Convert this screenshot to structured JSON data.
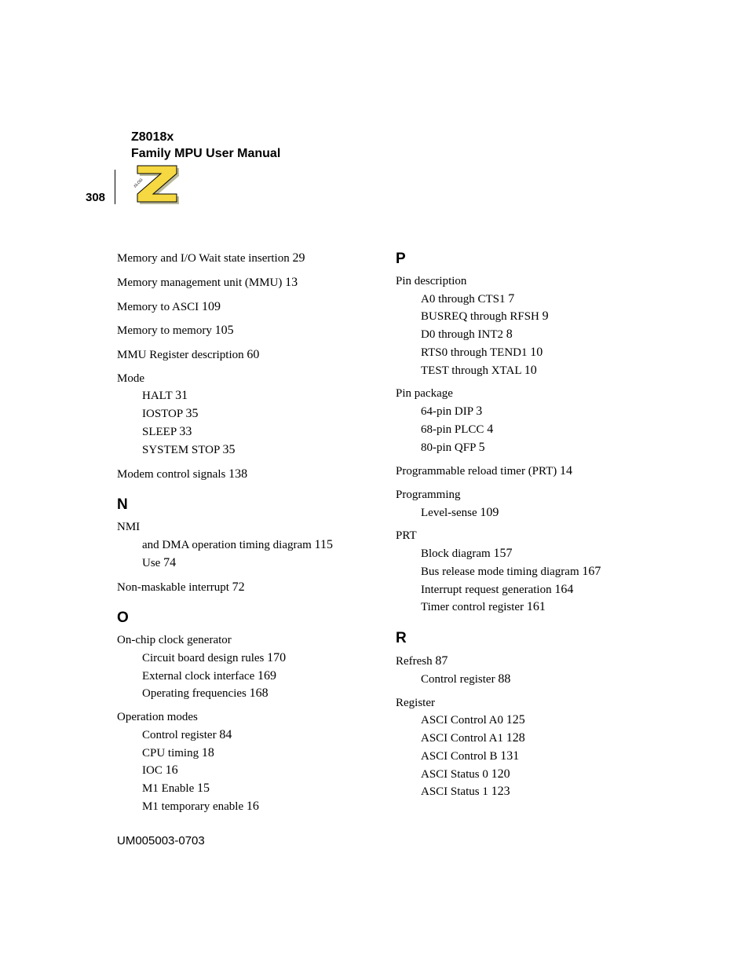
{
  "header": {
    "line1": "Z8018x",
    "line2": "Family MPU User Manual"
  },
  "page_number": "308",
  "footer_text": "UM005003-0703",
  "left_column": {
    "top_entries": [
      {
        "text": "Memory and I/O Wait state insertion",
        "page": "29"
      },
      {
        "text": "Memory management unit (MMU)",
        "page": "13"
      },
      {
        "text": "Memory to ASCI",
        "page": "109"
      },
      {
        "text": "Memory to memory",
        "page": "105"
      },
      {
        "text": "MMU Register description",
        "page": "60"
      }
    ],
    "mode_group": {
      "parent": "Mode",
      "children": [
        {
          "text": "HALT",
          "page": "31"
        },
        {
          "text": "IOSTOP",
          "page": "35"
        },
        {
          "text": "SLEEP",
          "page": "33"
        },
        {
          "text": "SYSTEM STOP",
          "page": "35"
        }
      ]
    },
    "modem_entry": {
      "text": "Modem control signals",
      "page": "138"
    },
    "sections": [
      {
        "heading": "N",
        "groups": [
          {
            "parent": "NMI",
            "children": [
              {
                "text": "and DMA operation timing diagram",
                "page": "115"
              },
              {
                "text": "Use",
                "page": "74"
              }
            ]
          },
          {
            "parent": null,
            "single": {
              "text": "Non-maskable interrupt",
              "page": "72"
            }
          }
        ]
      },
      {
        "heading": "O",
        "groups": [
          {
            "parent": "On-chip clock generator",
            "children": [
              {
                "text": "Circuit board design rules",
                "page": "170"
              },
              {
                "text": "External clock interface",
                "page": "169"
              },
              {
                "text": "Operating frequencies",
                "page": "168"
              }
            ]
          },
          {
            "parent": "Operation modes",
            "children": [
              {
                "text": "Control register",
                "page": "84"
              },
              {
                "text": "CPU timing",
                "page": "18"
              },
              {
                "text": "IOC",
                "page": "16"
              },
              {
                "text": "M1 Enable",
                "page": "15"
              },
              {
                "text": "M1 temporary enable",
                "page": "16"
              }
            ]
          }
        ]
      }
    ]
  },
  "right_column": {
    "sections": [
      {
        "heading": "P",
        "groups": [
          {
            "parent": "Pin description",
            "children": [
              {
                "text": "A0 through CTS1",
                "page": "7"
              },
              {
                "text": "BUSREQ through RFSH",
                "page": "9"
              },
              {
                "text": "D0 through INT2",
                "page": "8"
              },
              {
                "text": "RTS0 through TEND1",
                "page": "10"
              },
              {
                "text": "TEST through XTAL",
                "page": "10"
              }
            ]
          },
          {
            "parent": "Pin package",
            "children": [
              {
                "text": "64-pin DIP",
                "page": "3"
              },
              {
                "text": "68-pin PLCC",
                "page": "4"
              },
              {
                "text": "80-pin QFP",
                "page": "5"
              }
            ]
          },
          {
            "parent": null,
            "single": {
              "text": "Programmable reload timer (PRT)",
              "page": "14"
            }
          },
          {
            "parent": "Programming",
            "children": [
              {
                "text": "Level-sense",
                "page": "109"
              }
            ]
          },
          {
            "parent": "PRT",
            "children": [
              {
                "text": "Block diagram",
                "page": "157"
              },
              {
                "text": "Bus release mode timing diagram",
                "page": "167"
              },
              {
                "text": "Interrupt request generation",
                "page": "164"
              },
              {
                "text": "Timer control register",
                "page": "161"
              }
            ]
          }
        ]
      },
      {
        "heading": "R",
        "groups": [
          {
            "parent": "Refresh",
            "parent_page": "87",
            "children": [
              {
                "text": "Control register",
                "page": "88"
              }
            ]
          },
          {
            "parent": "Register",
            "children": [
              {
                "text": "ASCI Control A0",
                "page": "125"
              },
              {
                "text": "ASCI Control A1",
                "page": "128"
              },
              {
                "text": "ASCI Control B",
                "page": "131"
              },
              {
                "text": "ASCI Status 0",
                "page": "120"
              },
              {
                "text": "ASCI Status 1",
                "page": "123"
              }
            ]
          }
        ]
      }
    ]
  },
  "logo_colors": {
    "shadow": "#8a8a5a",
    "fill": "#f5d842",
    "stroke": "#000000"
  }
}
